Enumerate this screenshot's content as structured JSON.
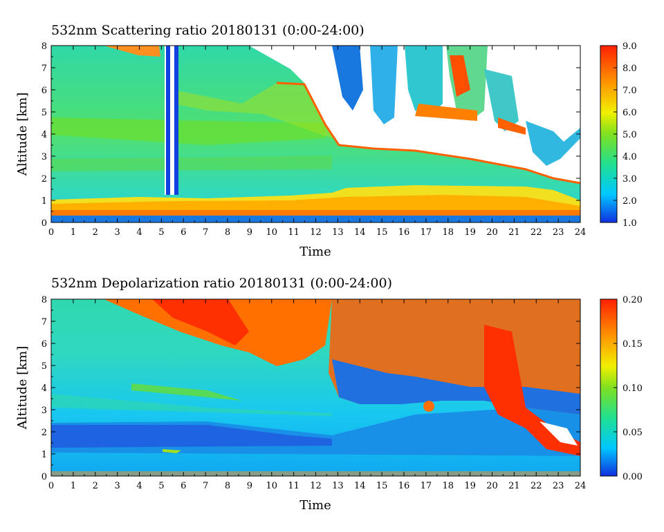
{
  "chart_data": [
    {
      "type": "heatmap",
      "title": "532nm Scattering ratio  20180131 (0:00-24:00)",
      "xlabel": "Time",
      "ylabel": "Altitude [km]",
      "xlim": [
        0,
        24
      ],
      "ylim": [
        0,
        8
      ],
      "x_ticks": [
        "0",
        "1",
        "2",
        "3",
        "4",
        "5",
        "6",
        "7",
        "8",
        "9",
        "10",
        "11",
        "12",
        "13",
        "14",
        "15",
        "16",
        "17",
        "18",
        "19",
        "20",
        "21",
        "22",
        "23",
        "24"
      ],
      "y_ticks": [
        "0",
        "1",
        "2",
        "3",
        "4",
        "5",
        "6",
        "7",
        "8"
      ],
      "colorbar": {
        "range": [
          1.0,
          9.0
        ],
        "ticks": [
          "1.0",
          "2.0",
          "3.0",
          "4.0",
          "5.0",
          "6.0",
          "7.0",
          "8.0",
          "9.0"
        ],
        "colormap": [
          "#1030e0",
          "#00c8ff",
          "#20e090",
          "#80e020",
          "#f0f000",
          "#ff9000",
          "#ff2000"
        ]
      },
      "features": {
        "boundary_layer_top_km": [
          [
            0,
            1.0
          ],
          [
            4,
            1.1
          ],
          [
            8,
            1.1
          ],
          [
            12,
            1.2
          ],
          [
            13,
            1.5
          ],
          [
            16,
            1.6
          ],
          [
            20,
            1.5
          ],
          [
            22,
            1.4
          ],
          [
            24,
            1.0
          ]
        ],
        "cloud_base_km": [
          [
            12.5,
            7.6
          ],
          [
            13,
            4.8
          ],
          [
            14,
            4.5
          ],
          [
            15,
            4.2
          ],
          [
            16,
            4.6
          ],
          [
            17,
            4.3
          ],
          [
            18,
            4.5
          ],
          [
            19,
            4.2
          ],
          [
            20,
            3.9
          ],
          [
            21,
            3.8
          ],
          [
            22,
            3.2
          ],
          [
            23,
            3.6
          ],
          [
            24,
            3.9
          ]
        ],
        "missing_data_column_hours": [
          5.1,
          5.8
        ],
        "no_signal_above_km": [
          [
            0,
            8
          ],
          [
            12,
            6.3
          ],
          [
            12.5,
            4.5
          ],
          [
            13,
            3.2
          ],
          [
            16,
            3.0
          ],
          [
            20,
            2.4
          ],
          [
            22,
            2.0
          ],
          [
            23,
            1.5
          ],
          [
            24,
            1.3
          ]
        ]
      }
    },
    {
      "type": "heatmap",
      "title": "532nm Depolarization ratio  20180131 (0:00-24:00)",
      "xlabel": "Time",
      "ylabel": "Altitude [km]",
      "xlim": [
        0,
        24
      ],
      "ylim": [
        0,
        8
      ],
      "x_ticks": [
        "0",
        "1",
        "2",
        "3",
        "4",
        "5",
        "6",
        "7",
        "8",
        "9",
        "10",
        "11",
        "12",
        "13",
        "14",
        "15",
        "16",
        "17",
        "18",
        "19",
        "20",
        "21",
        "22",
        "23",
        "24"
      ],
      "y_ticks": [
        "0",
        "1",
        "2",
        "3",
        "4",
        "5",
        "6",
        "7",
        "8"
      ],
      "colorbar": {
        "range": [
          0.0,
          0.2
        ],
        "ticks": [
          "0.00",
          "0.05",
          "0.10",
          "0.15",
          "0.20"
        ],
        "colormap": [
          "#1030e0",
          "#00c8ff",
          "#20e090",
          "#80e020",
          "#f0f000",
          "#ff9000",
          "#ff2000"
        ]
      },
      "features": {
        "low_depol_layer_km": [
          1.0,
          2.5
        ],
        "high_depol_region_start_hour": 2.5,
        "cloud_region_start_hour": 12.5
      }
    }
  ]
}
